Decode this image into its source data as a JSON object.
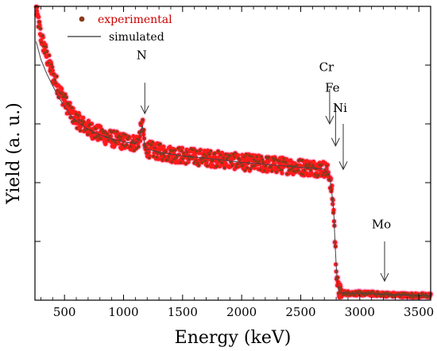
{
  "chart_data": {
    "type": "scatter",
    "xlabel": "Energy (keV)",
    "ylabel": "Yield (a. u.)",
    "xlim": [
      250,
      3600
    ],
    "ylim": [
      0,
      1
    ],
    "x_ticks": [
      "500",
      "1000",
      "1500",
      "2000",
      "2500",
      "3000",
      "3500"
    ],
    "x_tick_values": [
      500,
      1000,
      1500,
      2000,
      2500,
      3000,
      3500
    ],
    "y_ticks_labeled": false,
    "legend": {
      "position": "top-left",
      "entries": [
        {
          "label": "experimental",
          "marker": "dot",
          "color": "#8B3A1A",
          "text_color": "#cc0000"
        },
        {
          "label": "simulated",
          "marker": "line",
          "color": "#000000",
          "text_color": "#000000"
        }
      ]
    },
    "series": [
      {
        "name": "experimental",
        "kind": "points",
        "color": "#8B3A1A",
        "halo_color": "#ff1a1a",
        "x": [
          260,
          300,
          350,
          400,
          450,
          500,
          550,
          600,
          650,
          700,
          750,
          800,
          850,
          900,
          950,
          1000,
          1050,
          1100,
          1130,
          1150,
          1160,
          1170,
          1180,
          1190,
          1200,
          1250,
          1300,
          1400,
          1500,
          1600,
          1700,
          1800,
          1900,
          2000,
          2100,
          2200,
          2300,
          2400,
          2500,
          2600,
          2700,
          2740,
          2760,
          2780,
          2790,
          2800,
          2810,
          2820,
          2830,
          2850,
          2900,
          3000,
          3100,
          3200,
          3300,
          3400,
          3500,
          3600
        ],
        "y": [
          0.99,
          0.9,
          0.83,
          0.77,
          0.72,
          0.68,
          0.64,
          0.615,
          0.6,
          0.585,
          0.575,
          0.565,
          0.557,
          0.55,
          0.545,
          0.54,
          0.537,
          0.535,
          0.545,
          0.585,
          0.6,
          0.56,
          0.52,
          0.51,
          0.515,
          0.51,
          0.505,
          0.498,
          0.492,
          0.488,
          0.484,
          0.48,
          0.475,
          0.47,
          0.467,
          0.463,
          0.46,
          0.457,
          0.453,
          0.45,
          0.447,
          0.43,
          0.38,
          0.3,
          0.2,
          0.12,
          0.06,
          0.035,
          0.028,
          0.025,
          0.024,
          0.023,
          0.022,
          0.02,
          0.018,
          0.017,
          0.016,
          0.016
        ],
        "noise": 0.028
      },
      {
        "name": "simulated",
        "kind": "line",
        "color": "#444444",
        "x": [
          260,
          300,
          350,
          400,
          450,
          500,
          550,
          600,
          650,
          700,
          750,
          800,
          850,
          900,
          950,
          1000,
          1050,
          1100,
          1130,
          1150,
          1160,
          1170,
          1180,
          1190,
          1200,
          1250,
          1300,
          1400,
          1500,
          1600,
          1700,
          1800,
          1900,
          2000,
          2100,
          2200,
          2300,
          2400,
          2500,
          2600,
          2700,
          2740,
          2760,
          2780,
          2790,
          2800,
          2810,
          2820,
          2830,
          2850,
          2900,
          3000,
          3100,
          3200,
          3300,
          3400,
          3500,
          3600
        ],
        "y": [
          0.88,
          0.82,
          0.77,
          0.73,
          0.69,
          0.66,
          0.63,
          0.61,
          0.595,
          0.582,
          0.572,
          0.563,
          0.555,
          0.549,
          0.544,
          0.539,
          0.536,
          0.534,
          0.543,
          0.58,
          0.595,
          0.558,
          0.52,
          0.51,
          0.514,
          0.509,
          0.504,
          0.497,
          0.491,
          0.487,
          0.483,
          0.479,
          0.474,
          0.469,
          0.466,
          0.462,
          0.459,
          0.456,
          0.452,
          0.449,
          0.446,
          0.429,
          0.38,
          0.3,
          0.2,
          0.12,
          0.06,
          0.035,
          0.028,
          0.025,
          0.024,
          0.023,
          0.022,
          0.02,
          0.018,
          0.017,
          0.016,
          0.016
        ]
      }
    ],
    "annotations": [
      {
        "label": "N",
        "x": 1180,
        "arrow_top": 0.74,
        "arrow_bottom": 0.635,
        "label_y": 0.82
      },
      {
        "label": "Cr",
        "x": 2745,
        "arrow_top": 0.72,
        "arrow_bottom": 0.6,
        "label_y": 0.78
      },
      {
        "label": "Fe",
        "x": 2795,
        "arrow_top": 0.665,
        "arrow_bottom": 0.525,
        "label_y": 0.71
      },
      {
        "label": "Ni",
        "x": 2860,
        "arrow_top": 0.6,
        "arrow_bottom": 0.445,
        "label_y": 0.64
      },
      {
        "label": "Mo",
        "x": 3210,
        "arrow_top": 0.2,
        "arrow_bottom": 0.065,
        "label_y": 0.245
      }
    ]
  }
}
